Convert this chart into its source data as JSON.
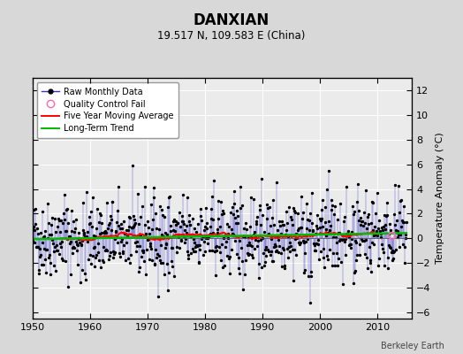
{
  "title": "DANXIAN",
  "subtitle": "19.517 N, 109.583 E (China)",
  "ylabel": "Temperature Anomaly (°C)",
  "credit": "Berkeley Earth",
  "xlim": [
    1950,
    2016
  ],
  "ylim": [
    -6.5,
    13
  ],
  "yticks": [
    -6,
    -4,
    -2,
    0,
    2,
    4,
    6,
    8,
    10,
    12
  ],
  "xticks": [
    1950,
    1960,
    1970,
    1980,
    1990,
    2000,
    2010
  ],
  "bg_color": "#d8d8d8",
  "plot_bg_color": "#ebebeb",
  "grid_color": "#ffffff",
  "line_color": "#3333cc",
  "dot_color": "#000000",
  "ma_color": "#ff0000",
  "trend_color": "#00bb00",
  "qc_color": "#ff69b4",
  "seed": 42,
  "n_years": 65,
  "start_year": 1950,
  "trend_slope": 0.006,
  "noise_scale": 1.5,
  "spike_count": 100,
  "spike_scale": 2.0,
  "ma_window": 60,
  "qc_fail_year": 2012.5
}
